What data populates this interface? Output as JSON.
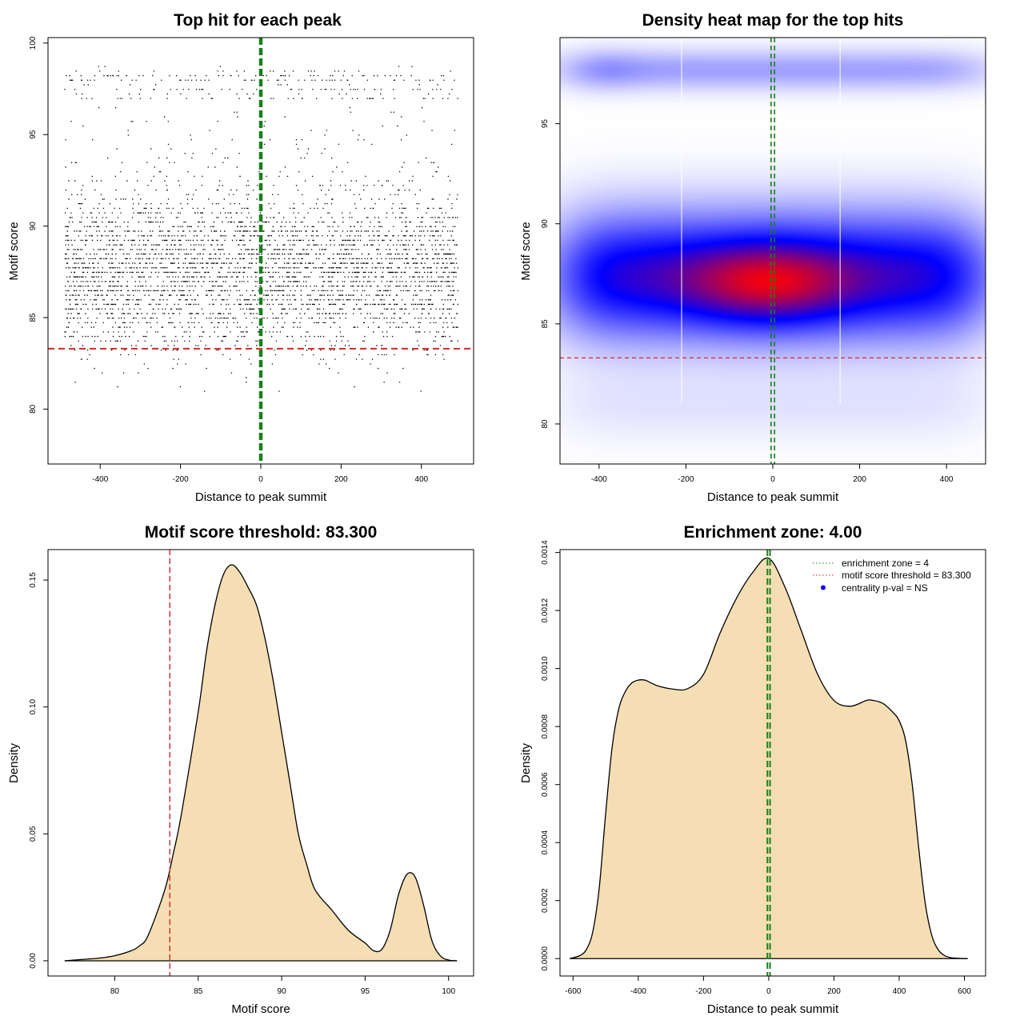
{
  "chart_data": [
    {
      "id": "scatter",
      "type": "scatter",
      "title": "Top hit for each peak",
      "xlabel": "Distance to peak summit",
      "ylabel": "Motif score",
      "xlim": [
        -530,
        530
      ],
      "ylim": [
        77,
        100.3
      ],
      "xticks": [
        -400,
        -200,
        0,
        200,
        400
      ],
      "yticks": [
        80,
        85,
        90,
        95,
        100
      ],
      "threshold": 83.3,
      "enrichment_zone": [
        -2,
        2
      ],
      "x_range": [
        -490,
        490
      ],
      "point_distribution": {
        "n_points": 9000,
        "main_mode": 87.5,
        "main_sd": 2.1,
        "upper_band": [
          97,
          98.7
        ],
        "upper_fraction": 0.06
      },
      "colors": {
        "points": "#000000",
        "threshold": "#d62728",
        "zone": "#1a7f1a"
      }
    },
    {
      "id": "heatmap",
      "type": "heatmap",
      "title": "Density heat map for the top hits",
      "xlabel": "Distance to peak summit",
      "ylabel": "Motif score",
      "xlim": [
        -490,
        490
      ],
      "ylim": [
        78,
        99.3
      ],
      "xticks": [
        -400,
        -200,
        0,
        200,
        400
      ],
      "yticks": [
        80,
        85,
        90,
        95
      ],
      "threshold": 83.3,
      "enrichment_zone": [
        -4,
        4
      ],
      "white_lines_x": [
        -210,
        155
      ],
      "colors": {
        "low": "#ffffff",
        "mid": "#0000ff",
        "high": "#ff0000",
        "threshold": "#d62728",
        "zone": "#1a7f1a"
      }
    },
    {
      "id": "score_density",
      "type": "area",
      "title": "Motif score threshold: 83.300",
      "xlabel": "Motif score",
      "ylabel": "Density",
      "xlim": [
        76,
        101.5
      ],
      "ylim": [
        -0.006,
        0.162
      ],
      "xticks": [
        80,
        85,
        90,
        95,
        100
      ],
      "yticks": [
        0.0,
        0.05,
        0.1,
        0.15
      ],
      "ytick_labels": [
        "0.00",
        "0.05",
        "0.10",
        "0.15"
      ],
      "threshold": 83.3,
      "x": [
        77,
        79,
        80,
        81,
        81.5,
        82,
        83,
        83.5,
        84,
        85,
        85.5,
        86,
        86.5,
        87,
        87.5,
        88,
        88.5,
        89,
        89.5,
        90,
        90.5,
        91,
        91.5,
        92,
        93,
        94,
        95,
        95.5,
        96,
        96.5,
        97,
        97.5,
        98,
        98.5,
        99,
        99.5,
        100,
        100.5
      ],
      "values": [
        0,
        0.001,
        0.002,
        0.004,
        0.006,
        0.01,
        0.028,
        0.042,
        0.058,
        0.098,
        0.122,
        0.14,
        0.152,
        0.156,
        0.153,
        0.147,
        0.14,
        0.127,
        0.11,
        0.09,
        0.07,
        0.05,
        0.038,
        0.028,
        0.02,
        0.012,
        0.007,
        0.004,
        0.0045,
        0.012,
        0.026,
        0.034,
        0.033,
        0.022,
        0.008,
        0.002,
        0.0003,
        0
      ],
      "colors": {
        "fill": "#f5deb3",
        "line": "#000000",
        "threshold": "#d62728"
      }
    },
    {
      "id": "dist_density",
      "type": "area",
      "title": "Enrichment zone: 4.00",
      "xlabel": "Distance to peak summit",
      "ylabel": "Density",
      "xlim": [
        -640,
        665
      ],
      "ylim": [
        -6e-05,
        0.00141
      ],
      "xticks": [
        -600,
        -400,
        -200,
        0,
        200,
        400,
        600
      ],
      "yticks": [
        0,
        0.0002,
        0.0004,
        0.0006,
        0.0008,
        0.001,
        0.0012,
        0.0014
      ],
      "ytick_labels": [
        "0.0000",
        "0.0002",
        "0.0004",
        "0.0006",
        "0.0008",
        "0.0010",
        "0.0012",
        "0.0014"
      ],
      "enrichment_zone": [
        -4,
        4
      ],
      "x": [
        -610,
        -580,
        -560,
        -540,
        -520,
        -500,
        -480,
        -460,
        -440,
        -420,
        -400,
        -380,
        -360,
        -340,
        -300,
        -250,
        -200,
        -150,
        -100,
        -50,
        0,
        50,
        100,
        150,
        200,
        250,
        300,
        320,
        350,
        380,
        400,
        420,
        440,
        460,
        480,
        500,
        520,
        540,
        560,
        580,
        610
      ],
      "values": [
        0,
        1e-05,
        3e-05,
        9e-05,
        0.00024,
        0.0005,
        0.00073,
        0.00086,
        0.00092,
        0.00095,
        0.00096,
        0.00096,
        0.00095,
        0.00094,
        0.00093,
        0.00093,
        0.00098,
        0.00112,
        0.00124,
        0.00133,
        0.00138,
        0.00128,
        0.00113,
        0.00098,
        0.00089,
        0.00087,
        0.00089,
        0.00089,
        0.00088,
        0.00085,
        0.00082,
        0.00075,
        0.0006,
        0.00038,
        0.00019,
        8e-05,
        3e-05,
        1e-05,
        3e-06,
        1e-06,
        0
      ],
      "legend": [
        {
          "label": "enrichment zone = 4",
          "style": "dotted",
          "color": "#1a7f1a"
        },
        {
          "label": "motif score threshold = 83.300",
          "style": "dotted",
          "color": "#d62728"
        },
        {
          "label": "centrality p-val = NS",
          "style": "dot",
          "color": "#0000ff"
        }
      ],
      "colors": {
        "fill": "#f5deb3",
        "line": "#000000",
        "zone": "#1a7f1a"
      }
    }
  ]
}
